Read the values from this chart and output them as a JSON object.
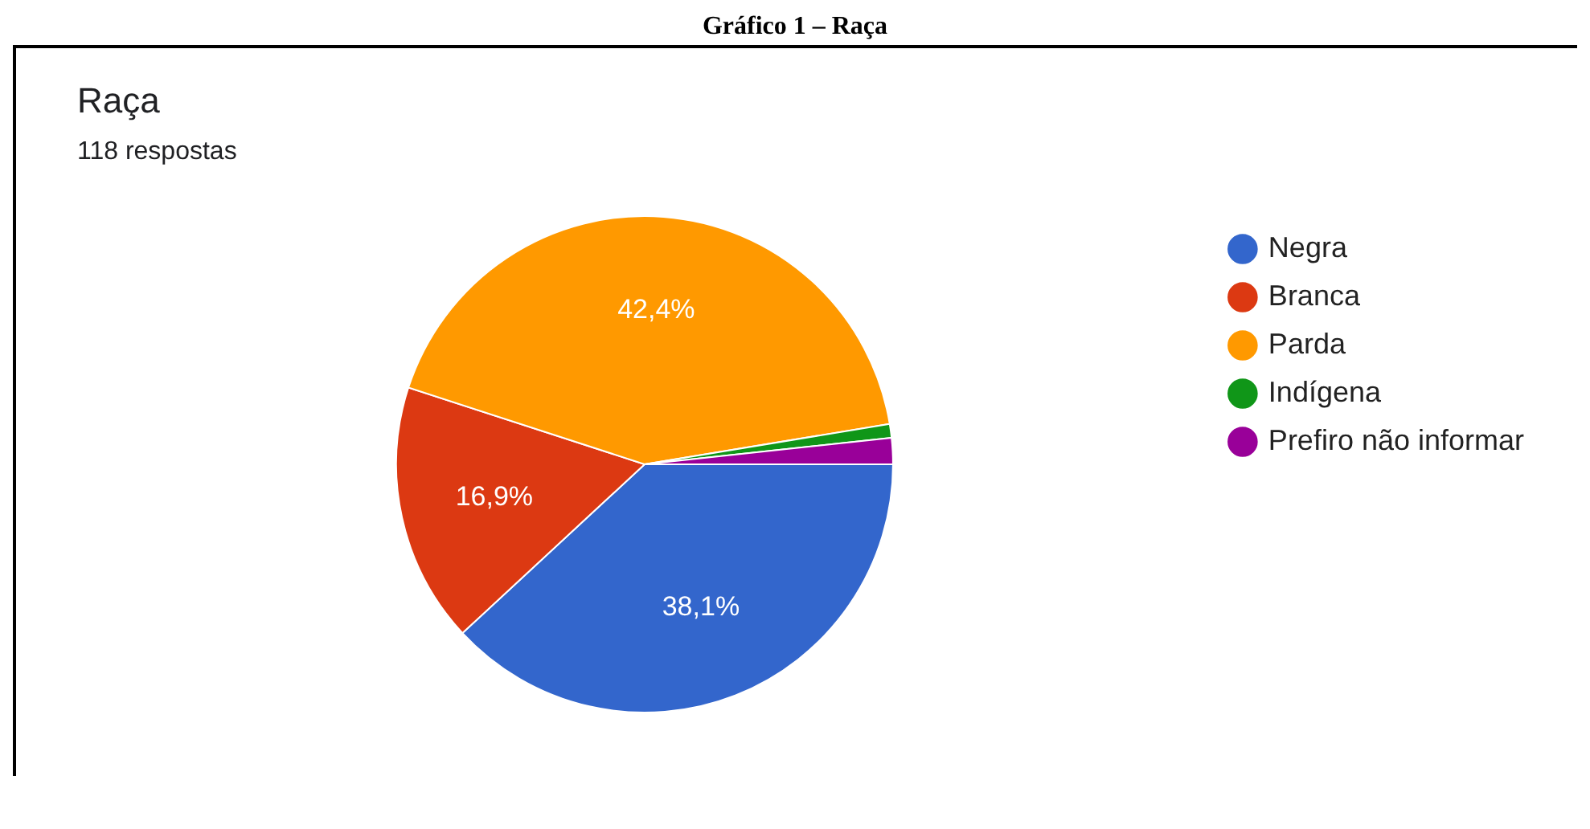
{
  "chart_data": {
    "type": "pie",
    "title": "Raça",
    "subtitle": "118 respostas",
    "annotations": [
      "Gráfico 1 – Raça"
    ],
    "categories": [
      "Negra",
      "Branca",
      "Parda",
      "Indígena",
      "Prefiro não informar"
    ],
    "values": [
      38.1,
      16.9,
      42.4,
      0.9,
      1.7
    ],
    "colors": [
      "#3366cc",
      "#dc3912",
      "#ff9900",
      "#109618",
      "#990099"
    ],
    "value_labels": [
      "38,1%",
      "16,9%",
      "42,4%",
      null,
      null
    ],
    "legend": "right"
  }
}
